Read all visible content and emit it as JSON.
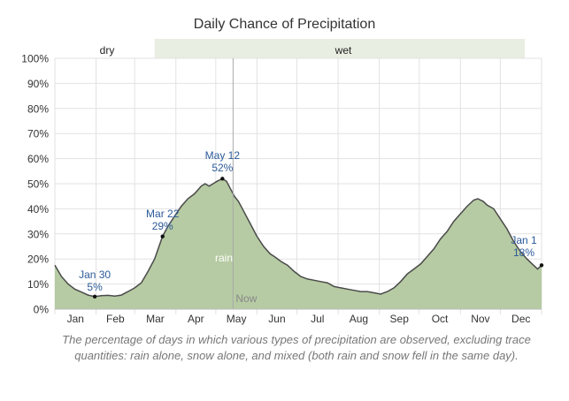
{
  "chart_data": {
    "type": "area",
    "title": "Daily Chance of Precipitation",
    "caption": "The percentage of days in which various types of precipitation are observed, excluding trace quantities: rain alone, snow alone, and mixed (both rain and snow fell in the same day).",
    "months": [
      "Jan",
      "Feb",
      "Mar",
      "Apr",
      "May",
      "Jun",
      "Jul",
      "Aug",
      "Sep",
      "Oct",
      "Nov",
      "Dec"
    ],
    "y_ticks": [
      "0%",
      "10%",
      "20%",
      "30%",
      "40%",
      "50%",
      "60%",
      "70%",
      "80%",
      "90%",
      "100%"
    ],
    "ylim": [
      0,
      100
    ],
    "grid": true,
    "seasons": [
      {
        "label": "dry",
        "start_day": 0,
        "end_day": 75,
        "color": "#ffffff"
      },
      {
        "label": "wet",
        "start_day": 75,
        "end_day": 366,
        "color": "#e8eee2"
      }
    ],
    "series": [
      {
        "name": "rain",
        "color": "#b6cba3",
        "line_color": "#4a4a4a",
        "points": [
          [
            0,
            17.5
          ],
          [
            5,
            13
          ],
          [
            10,
            10
          ],
          [
            15,
            8
          ],
          [
            20,
            6.8
          ],
          [
            25,
            5.6
          ],
          [
            30,
            5
          ],
          [
            35,
            5.4
          ],
          [
            40,
            5.5
          ],
          [
            45,
            5.2
          ],
          [
            50,
            5.6
          ],
          [
            55,
            7
          ],
          [
            60,
            8.5
          ],
          [
            65,
            10.5
          ],
          [
            70,
            15
          ],
          [
            75,
            20
          ],
          [
            81,
            29
          ],
          [
            85,
            33
          ],
          [
            90,
            37
          ],
          [
            95,
            41
          ],
          [
            100,
            44
          ],
          [
            105,
            46
          ],
          [
            110,
            49
          ],
          [
            113,
            50
          ],
          [
            116,
            49
          ],
          [
            119,
            50
          ],
          [
            122,
            51
          ],
          [
            126,
            52
          ],
          [
            129,
            51
          ],
          [
            132,
            48
          ],
          [
            135,
            45
          ],
          [
            138,
            43
          ],
          [
            142,
            39
          ],
          [
            147,
            34
          ],
          [
            152,
            29
          ],
          [
            157,
            25
          ],
          [
            162,
            22
          ],
          [
            165,
            21
          ],
          [
            170,
            19
          ],
          [
            175,
            17.5
          ],
          [
            180,
            15
          ],
          [
            185,
            13
          ],
          [
            190,
            12
          ],
          [
            195,
            11.5
          ],
          [
            200,
            11
          ],
          [
            205,
            10.5
          ],
          [
            210,
            9
          ],
          [
            215,
            8.5
          ],
          [
            220,
            8
          ],
          [
            225,
            7.5
          ],
          [
            230,
            7
          ],
          [
            235,
            7
          ],
          [
            240,
            6.5
          ],
          [
            245,
            6
          ],
          [
            250,
            7
          ],
          [
            255,
            8.5
          ],
          [
            260,
            11
          ],
          [
            265,
            14
          ],
          [
            270,
            16
          ],
          [
            275,
            18
          ],
          [
            280,
            21
          ],
          [
            285,
            24
          ],
          [
            290,
            28
          ],
          [
            295,
            31
          ],
          [
            300,
            35
          ],
          [
            305,
            38
          ],
          [
            310,
            41
          ],
          [
            315,
            43.5
          ],
          [
            318,
            44
          ],
          [
            322,
            43
          ],
          [
            325,
            41.5
          ],
          [
            330,
            40
          ],
          [
            335,
            36
          ],
          [
            340,
            32
          ],
          [
            345,
            27
          ],
          [
            350,
            23
          ],
          [
            355,
            20
          ],
          [
            359,
            18
          ],
          [
            363,
            16
          ],
          [
            366,
            17.5
          ]
        ]
      }
    ],
    "annotations": [
      {
        "label": "Jan 30",
        "value": "5%",
        "day": 30,
        "pct": 5
      },
      {
        "label": "Mar 22",
        "value": "29%",
        "day": 81,
        "pct": 29
      },
      {
        "label": "May 12",
        "value": "52%",
        "day": 126,
        "pct": 52
      },
      {
        "label": "Jan 1",
        "value": "18%",
        "day": 366,
        "pct": 17.5
      }
    ],
    "series_label": "rain",
    "now_label": "Now",
    "now_day": 134
  }
}
